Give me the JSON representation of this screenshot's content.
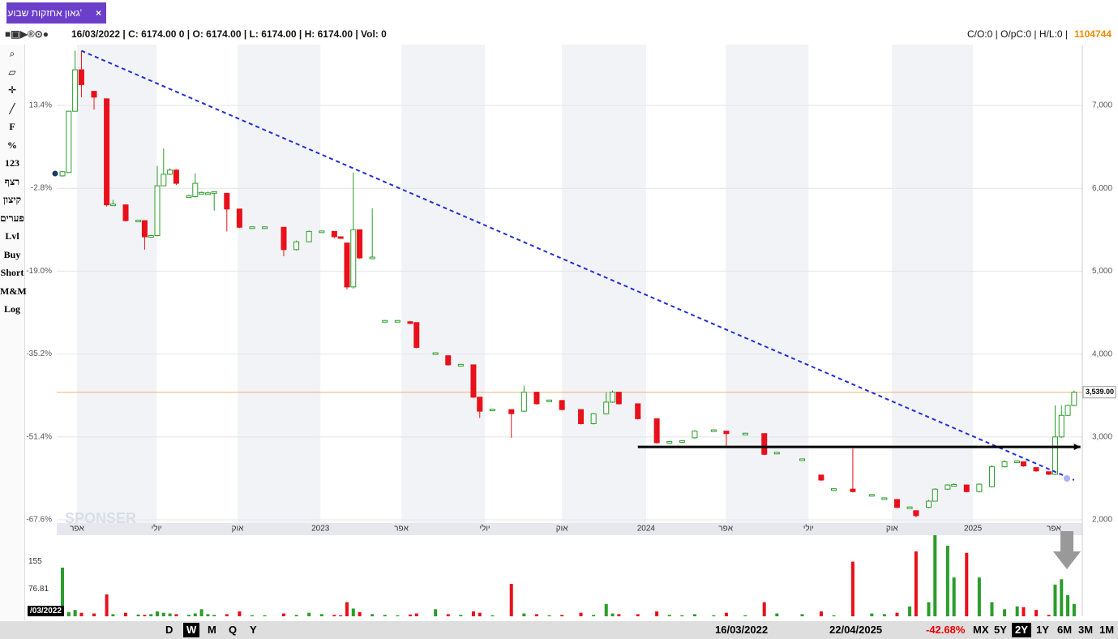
{
  "tab": {
    "title": "גאון אחזקות שבוע'",
    "close": "×"
  },
  "header": {
    "left": "16/03/2022 | C: 6174.00 0 | O: 6174.00 | L: 6174.00 | H: 6174.00 | Vol: 0",
    "right": "C/O:0 | O/pC:0 | H/L:0 |",
    "id": "1104744"
  },
  "left_toolbar": [
    "F",
    "%",
    "123",
    "רצף",
    "קיצון",
    "פערים",
    "Lvl",
    "Buy",
    "Short",
    "M&M",
    "Log"
  ],
  "bottom_toolbar": {
    "periods": [
      "D",
      "W",
      "M",
      "Q",
      "Y"
    ],
    "start": "16/03/2022",
    "end": "22/04/2025",
    "change": "-42.68%",
    "ranges": [
      "MX",
      "5Y",
      "2Y",
      "1Y",
      "6M",
      "3M",
      "1M"
    ],
    "cursor_date": "/03/2022"
  },
  "watermark": "SPONSER",
  "chart_data": {
    "type": "candlestick",
    "up_color": "#2a9d2a",
    "down_color": "#e8101a",
    "xlim": [
      -0.9,
      161.3
    ],
    "ylim": [
      1961,
      7734
    ],
    "y2lim": [
      -68.24,
      25.27
    ],
    "grid": true,
    "xticks": [
      {
        "value": 2.3,
        "label": "אפר"
      },
      {
        "value": 14.9,
        "label": "יולי"
      },
      {
        "value": 27.7,
        "label": "אוק"
      },
      {
        "value": 40.8,
        "label": "2023"
      },
      {
        "value": 53.6,
        "label": "אפר"
      },
      {
        "value": 66.8,
        "label": "יולי"
      },
      {
        "value": 79,
        "label": "אוק"
      },
      {
        "value": 92.3,
        "label": "2024"
      },
      {
        "value": 104.9,
        "label": "אפר"
      },
      {
        "value": 118,
        "label": "יולי"
      },
      {
        "value": 131.2,
        "label": "אוק"
      },
      {
        "value": 144,
        "label": "2025"
      },
      {
        "value": 156.8,
        "label": "אפר"
      }
    ],
    "yticks": [
      {
        "value": 7000,
        "label": "7,000"
      },
      {
        "value": 6000,
        "label": "6,000"
      },
      {
        "value": 5000,
        "label": "5,000"
      },
      {
        "value": 4000,
        "label": "4,000"
      },
      {
        "value": 3000,
        "label": "3,000"
      },
      {
        "value": 2000,
        "label": "2,000"
      }
    ],
    "y2ticks": [
      {
        "value": 13.4,
        "label": "13.4%"
      },
      {
        "value": -2.8,
        "label": "-2.8%"
      },
      {
        "value": -19.0,
        "label": "-19.0%"
      },
      {
        "value": -35.2,
        "label": "-35.2%"
      },
      {
        "value": -51.4,
        "label": "-51.4%"
      },
      {
        "value": -67.6,
        "label": "-67.6%"
      }
    ],
    "x": [
      0,
      1,
      2,
      3,
      5,
      7,
      8,
      10,
      12,
      13,
      14,
      15,
      16,
      17,
      18,
      20,
      21,
      22,
      23,
      24,
      26,
      28,
      30,
      32,
      35,
      37,
      39,
      41,
      43,
      44,
      45,
      46,
      47,
      49,
      51,
      53,
      55,
      56,
      59,
      61,
      63,
      65,
      66,
      68,
      71,
      73,
      75,
      77,
      79,
      82,
      84,
      86,
      87,
      88,
      91,
      94,
      96,
      98,
      100,
      103,
      105,
      108,
      111,
      113,
      117,
      120,
      122,
      125,
      128,
      130,
      132,
      134,
      135,
      137,
      138,
      140,
      141,
      143,
      145,
      147,
      149,
      151,
      152,
      154,
      156,
      157,
      158,
      159,
      160
    ],
    "open": [
      6150,
      6190,
      6930,
      7430,
      7170,
      7080,
      5800,
      5800,
      5610,
      5610,
      5415,
      5430,
      6030,
      6170,
      6220,
      5900,
      5900,
      5940,
      5940,
      5940,
      5940,
      5750,
      5530,
      5530,
      5530,
      5260,
      5355,
      5480,
      5480,
      5415,
      5340,
      4810,
      5500,
      5160,
      4400,
      4400,
      4390,
      4380,
      4010,
      3980,
      3870,
      3870,
      3480,
      3330,
      3330,
      3310,
      3540,
      3440,
      3440,
      3330,
      3160,
      3280,
      3420,
      3540,
      3400,
      3220,
      2930,
      2940,
      2990,
      3075,
      3070,
      3040,
      3040,
      2800,
      2730,
      2540,
      2370,
      2370,
      2300,
      2260,
      2245,
      2150,
      2110,
      2150,
      2225,
      2370,
      2420,
      2420,
      2340,
      2400,
      2640,
      2700,
      2700,
      2630,
      2580,
      2550,
      3000,
      3260,
      3380
    ],
    "high": [
      6210,
      6930,
      7660,
      7660,
      7170,
      7080,
      5860,
      5800,
      5620,
      5610,
      5440,
      6270,
      6480,
      6240,
      6230,
      5920,
      6180,
      5960,
      5960,
      5950,
      5940,
      5750,
      5540,
      5540,
      5530,
      5370,
      5490,
      5490,
      5480,
      5420,
      5340,
      6190,
      5500,
      5760,
      4410,
      4410,
      4400,
      4380,
      4020,
      3980,
      3880,
      3870,
      3480,
      3340,
      3330,
      3620,
      3540,
      3450,
      3440,
      3330,
      3290,
      3540,
      3560,
      3540,
      3400,
      3220,
      2950,
      2960,
      3080,
      3090,
      3070,
      3050,
      3040,
      2820,
      2740,
      2540,
      2380,
      2860,
      2310,
      2270,
      2245,
      2160,
      2110,
      2240,
      2380,
      2430,
      2440,
      2420,
      2440,
      2660,
      2720,
      2720,
      2700,
      2630,
      2580,
      3380,
      3380,
      3390,
      3560
    ],
    "low": [
      6140,
      6190,
      6930,
      7100,
      6950,
      5780,
      5790,
      5600,
      5600,
      5260,
      5410,
      5420,
      6030,
      6160,
      6040,
      5890,
      5890,
      5930,
      5930,
      5730,
      5480,
      5520,
      5520,
      5520,
      5180,
      5250,
      5350,
      5470,
      5400,
      5400,
      4780,
      4790,
      5150,
      5150,
      4390,
      4390,
      4360,
      4070,
      4000,
      3860,
      3860,
      3470,
      3230,
      3320,
      2990,
      3300,
      3390,
      3430,
      3320,
      3150,
      3150,
      3270,
      3410,
      3390,
      3210,
      2920,
      2920,
      2930,
      2980,
      3070,
      2890,
      3030,
      2780,
      2790,
      2720,
      2470,
      2360,
      2330,
      2290,
      2250,
      2140,
      2140,
      2030,
      2140,
      2220,
      2360,
      2410,
      2330,
      2330,
      2390,
      2630,
      2690,
      2640,
      2580,
      2540,
      2540,
      2990,
      3250,
      3370
    ],
    "close": [
      6200,
      6930,
      7430,
      7250,
      7100,
      5800,
      5810,
      5610,
      5615,
      5415,
      5430,
      6030,
      6170,
      6220,
      6060,
      5910,
      6060,
      5950,
      5945,
      5960,
      5750,
      5530,
      5535,
      5535,
      5260,
      5355,
      5480,
      5485,
      5415,
      5410,
      4810,
      5500,
      5160,
      5170,
      4405,
      4405,
      4370,
      4080,
      4015,
      3870,
      3875,
      3480,
      3310,
      3335,
      3280,
      3540,
      3400,
      3445,
      3330,
      3160,
      3280,
      3420,
      3540,
      3400,
      3220,
      2930,
      2945,
      2955,
      3070,
      3085,
      3040,
      3045,
      2790,
      2815,
      2735,
      2480,
      2375,
      2340,
      2305,
      2265,
      2150,
      2155,
      2050,
      2225,
      2370,
      2420,
      2425,
      2340,
      2430,
      2640,
      2700,
      2710,
      2650,
      2590,
      2550,
      3000,
      3260,
      3380,
      3539
    ],
    "volume": [
      138,
      12,
      18,
      10,
      8,
      62,
      6,
      10,
      5,
      4,
      6,
      14,
      10,
      8,
      6,
      4,
      8,
      20,
      6,
      4,
      6,
      14,
      3,
      3,
      8,
      4,
      10,
      6,
      4,
      3,
      40,
      22,
      12,
      6,
      4,
      3,
      5,
      8,
      20,
      6,
      4,
      14,
      10,
      3,
      92,
      8,
      6,
      3,
      4,
      10,
      4,
      35,
      8,
      6,
      6,
      14,
      4,
      3,
      6,
      3,
      10,
      3,
      40,
      8,
      6,
      14,
      3,
      155,
      8,
      6,
      10,
      28,
      184,
      40,
      230,
      200,
      110,
      180,
      110,
      40,
      20,
      28,
      26,
      18,
      4,
      90,
      105,
      60,
      35
    ],
    "volume_ylim": [
      0,
      230
    ],
    "volume_yticks": [
      155,
      76.81
    ],
    "trend_line": {
      "x": [
        3,
        160
      ],
      "y": [
        7660,
        2480
      ],
      "color": "#1f2fd6"
    },
    "support_line": {
      "x": [
        91,
        161
      ],
      "y": [
        2880,
        2880
      ],
      "color": "#000000"
    },
    "price_line": {
      "value": 3539,
      "value_label": "3,539.00",
      "color": "#f0b070"
    }
  }
}
